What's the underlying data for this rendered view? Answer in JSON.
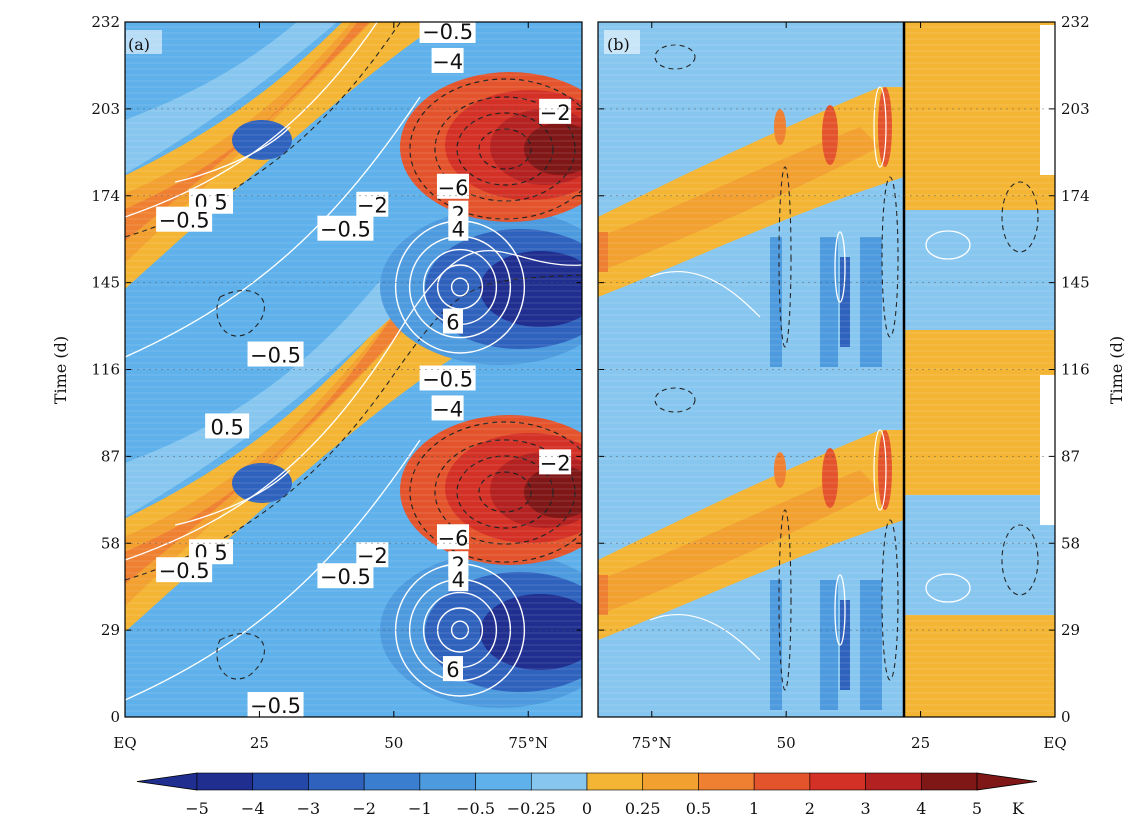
{
  "colors": {
    "levels": [
      "#1f2e8f",
      "#2448a8",
      "#2f62bd",
      "#3a7fcf",
      "#4d9ade",
      "#5eb1ea",
      "#87c6ef",
      "#f3b533",
      "#f2a030",
      "#ef8032",
      "#e4542c",
      "#d33026",
      "#b32120",
      "#7f1717"
    ],
    "contour_positive": "#ffffff",
    "contour_negative": "#222222"
  },
  "chart_data": [
    {
      "type": "heatmap",
      "panel_label": "(a)",
      "x_ticks": [
        "EQ",
        "25",
        "50",
        "75°N"
      ],
      "x_values": [
        0,
        25,
        50,
        75
      ],
      "xlim": [
        0,
        85
      ],
      "y_ticks": [
        "0",
        "29",
        "58",
        "87",
        "116",
        "145",
        "174",
        "203",
        "232"
      ],
      "y_values": [
        0,
        29,
        58,
        87,
        116,
        145,
        174,
        203,
        232
      ],
      "ylim": [
        0,
        232
      ],
      "ylabel": "Time (d)",
      "contour_labels": [
        {
          "text": "−0.5",
          "lat": 60,
          "t": 229
        },
        {
          "text": "−4",
          "lat": 60,
          "t": 219
        },
        {
          "text": "−2",
          "lat": 80,
          "t": 202
        },
        {
          "text": "−6",
          "lat": 61,
          "t": 177
        },
        {
          "text": "2",
          "lat": 62,
          "t": 168
        },
        {
          "text": "4",
          "lat": 62,
          "t": 163
        },
        {
          "text": "6",
          "lat": 61,
          "t": 132
        },
        {
          "text": "−2",
          "lat": 46,
          "t": 171
        },
        {
          "text": "−0.5",
          "lat": 41,
          "t": 163
        },
        {
          "text": "0.5",
          "lat": 16,
          "t": 172
        },
        {
          "text": "−0.5",
          "lat": 11,
          "t": 166
        },
        {
          "text": "−0.5",
          "lat": 28,
          "t": 121
        },
        {
          "text": "−0.5",
          "lat": 60,
          "t": 113
        },
        {
          "text": "−4",
          "lat": 60,
          "t": 103
        },
        {
          "text": "0.5",
          "lat": 19,
          "t": 97
        },
        {
          "text": "−2",
          "lat": 80,
          "t": 85
        },
        {
          "text": "−6",
          "lat": 61,
          "t": 60
        },
        {
          "text": "−2",
          "lat": 46,
          "t": 54
        },
        {
          "text": "2",
          "lat": 62,
          "t": 51
        },
        {
          "text": "−0.5",
          "lat": 41,
          "t": 47
        },
        {
          "text": "4",
          "lat": 62,
          "t": 46
        },
        {
          "text": "0.5",
          "lat": 16,
          "t": 55
        },
        {
          "text": "−0.5",
          "lat": 11,
          "t": 49
        },
        {
          "text": "6",
          "lat": 61,
          "t": 16
        },
        {
          "text": "−0.5",
          "lat": 28,
          "t": 4
        }
      ]
    },
    {
      "type": "heatmap",
      "panel_label": "(b)",
      "x_ticks": [
        "75°N",
        "50",
        "25",
        "EQ"
      ],
      "x_values": [
        75,
        50,
        25,
        0
      ],
      "xlim": [
        85,
        0
      ],
      "y_ticks": [
        "0",
        "29",
        "58",
        "87",
        "116",
        "145",
        "174",
        "203",
        "232"
      ],
      "y_values": [
        0,
        29,
        58,
        87,
        116,
        145,
        174,
        203,
        232
      ],
      "ylim": [
        0,
        232
      ],
      "ylabel": "Time (d)"
    }
  ],
  "colorbar": {
    "ticks": [
      "−5",
      "−4",
      "−3",
      "−2",
      "−1",
      "−0.5",
      "−0.25",
      "0",
      "0.25",
      "0.5",
      "1",
      "2",
      "3",
      "4",
      "5"
    ],
    "unit": "K"
  }
}
